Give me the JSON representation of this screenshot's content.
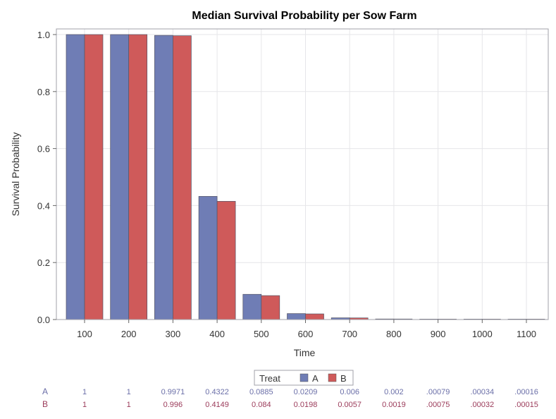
{
  "chart_data": {
    "type": "bar",
    "title": "Median Survival Probability per Sow Farm",
    "xlabel": "Time",
    "ylabel": "Survival Probability",
    "ylim": [
      0,
      1
    ],
    "yticks": [
      "0.0",
      "0.2",
      "0.4",
      "0.6",
      "0.8",
      "1.0"
    ],
    "categories": [
      "100",
      "200",
      "300",
      "400",
      "500",
      "600",
      "700",
      "800",
      "900",
      "1000",
      "1100"
    ],
    "grid": true,
    "legend": {
      "title": "Treat",
      "placement": "bottom-center"
    },
    "series": [
      {
        "name": "A",
        "color": "#6f7db5",
        "values": [
          1,
          1,
          0.9971,
          0.4322,
          0.0885,
          0.0209,
          0.006,
          0.002,
          0.00079,
          0.00034,
          0.00016
        ],
        "labels": [
          "1",
          "1",
          "0.9971",
          "0.4322",
          "0.0885",
          "0.0209",
          "0.006",
          "0.002",
          ".00079",
          ".00034",
          ".00016"
        ]
      },
      {
        "name": "B",
        "color": "#cf5a5a",
        "values": [
          1,
          1,
          0.996,
          0.4149,
          0.084,
          0.0198,
          0.0057,
          0.0019,
          0.00075,
          0.00032,
          0.00015
        ],
        "labels": [
          "1",
          "1",
          "0.996",
          "0.4149",
          "0.084",
          "0.0198",
          "0.0057",
          "0.0019",
          ".00075",
          ".00032",
          ".00015"
        ]
      }
    ],
    "table_colors": {
      "A": "#6b6fa8",
      "B": "#9b3b5a"
    }
  }
}
